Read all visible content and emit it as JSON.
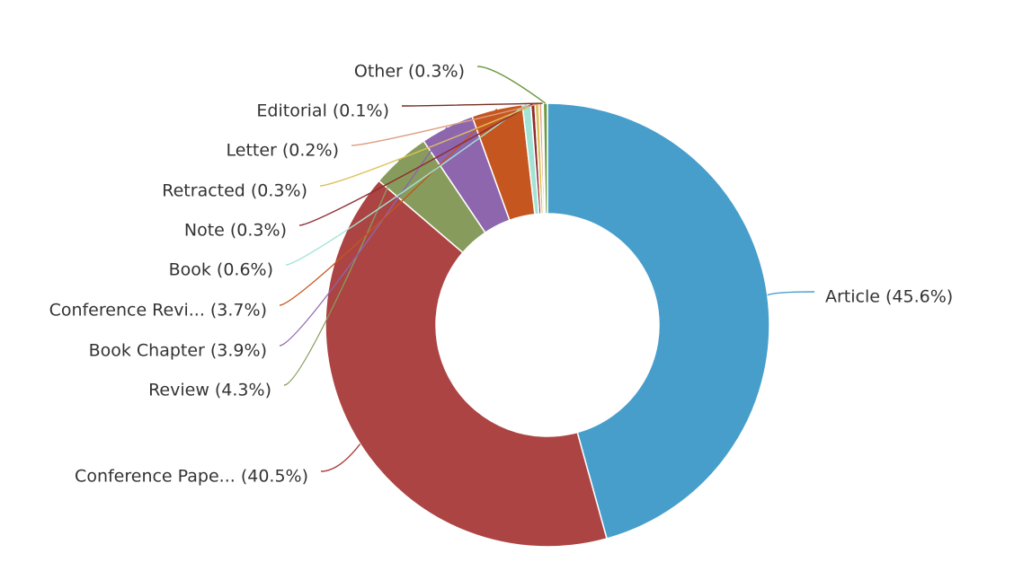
{
  "chart_data": {
    "type": "pie",
    "variant": "donut",
    "title": "",
    "legend": "none",
    "slices": [
      {
        "label": "Article (45.6%)",
        "value": 45.6,
        "color": "#479ecb"
      },
      {
        "label": "Conference Pape... (40.5%)",
        "value": 40.5,
        "color": "#ac4443"
      },
      {
        "label": "Review (4.3%)",
        "value": 4.3,
        "color": "#879c5c"
      },
      {
        "label": "Book Chapter (3.9%)",
        "value": 3.9,
        "color": "#8d66ad"
      },
      {
        "label": "Conference Revi... (3.7%)",
        "value": 3.7,
        "color": "#c5561f"
      },
      {
        "label": "Book (0.6%)",
        "value": 0.6,
        "color": "#a3e3d6"
      },
      {
        "label": "Note (0.3%)",
        "value": 0.3,
        "color": "#8e2b31"
      },
      {
        "label": "Retracted (0.3%)",
        "value": 0.3,
        "color": "#ddc15a"
      },
      {
        "label": "Letter (0.2%)",
        "value": 0.2,
        "color": "#dda182"
      },
      {
        "label": "Editorial (0.1%)",
        "value": 0.1,
        "color": "#752d21"
      },
      {
        "label": "Other (0.3%)",
        "value": 0.3,
        "color": "#6e9a44"
      }
    ]
  }
}
